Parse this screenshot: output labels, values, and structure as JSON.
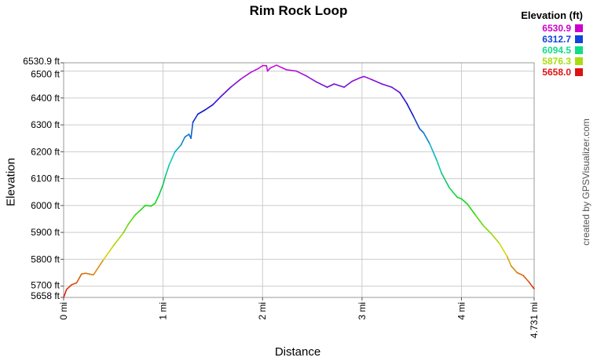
{
  "chart_data": {
    "type": "line",
    "title": "Rim Rock Loop",
    "xlabel": "Distance",
    "ylabel": "Elevation",
    "credit": "created by GPSVisualizer.com",
    "xlim": [
      0,
      4.731
    ],
    "ylim": [
      5658,
      6530.9
    ],
    "x_ticks": [
      {
        "value": 0,
        "label": "0 mi"
      },
      {
        "value": 1,
        "label": "1 mi"
      },
      {
        "value": 2,
        "label": "2 mi"
      },
      {
        "value": 3,
        "label": "3 mi"
      },
      {
        "value": 4,
        "label": "4 mi"
      },
      {
        "value": 4.731,
        "label": "4.731 mi"
      }
    ],
    "y_ticks": [
      {
        "value": 5658,
        "label": "5658 ft"
      },
      {
        "value": 5700,
        "label": "5700 ft"
      },
      {
        "value": 5800,
        "label": "5800 ft"
      },
      {
        "value": 5900,
        "label": "5900 ft"
      },
      {
        "value": 6000,
        "label": "6000 ft"
      },
      {
        "value": 6100,
        "label": "6100 ft"
      },
      {
        "value": 6200,
        "label": "6200 ft"
      },
      {
        "value": 6300,
        "label": "6300 ft"
      },
      {
        "value": 6400,
        "label": "6400 ft"
      },
      {
        "value": 6500,
        "label": "6500 ft"
      },
      {
        "value": 6530.9,
        "label": "6530.9 ft"
      }
    ],
    "grid": true,
    "legend_position": "top-right",
    "legend": {
      "title": "Elevation (ft)",
      "entries": [
        {
          "label": "6530.9",
          "color": "#cc00cc"
        },
        {
          "label": "6312.7",
          "color": "#1144dd"
        },
        {
          "label": "6094.5",
          "color": "#11dd88"
        },
        {
          "label": "5876.3",
          "color": "#aadd11"
        },
        {
          "label": "5658.0",
          "color": "#dd1111"
        }
      ]
    },
    "series": [
      {
        "x": [
          0,
          0.03,
          0.08,
          0.13,
          0.18,
          0.22,
          0.3,
          0.4,
          0.5,
          0.6,
          0.65,
          0.72,
          0.78,
          0.82,
          0.88,
          0.92,
          0.96,
          1.0,
          1.02,
          1.06,
          1.12,
          1.18,
          1.22,
          1.26,
          1.28,
          1.3,
          1.35,
          1.42,
          1.5,
          1.58,
          1.68,
          1.78,
          1.88,
          1.96,
          2.0,
          2.04,
          2.05,
          2.08,
          2.14,
          2.2,
          2.24,
          2.34,
          2.44,
          2.54,
          2.65,
          2.72,
          2.82,
          2.9,
          2.98,
          3.02,
          3.1,
          3.2,
          3.3,
          3.38,
          3.45,
          3.52,
          3.58,
          3.62,
          3.68,
          3.75,
          3.8,
          3.88,
          3.96,
          4.0,
          4.06,
          4.14,
          4.22,
          4.3,
          4.38,
          4.46,
          4.5,
          4.56,
          4.62,
          4.68,
          4.72,
          4.731
        ],
        "y": [
          5658,
          5688,
          5705,
          5712,
          5745,
          5748,
          5742,
          5798,
          5850,
          5898,
          5930,
          5965,
          5985,
          6000,
          5998,
          6008,
          6040,
          6078,
          6105,
          6150,
          6200,
          6225,
          6255,
          6265,
          6250,
          6310,
          6340,
          6355,
          6375,
          6405,
          6440,
          6470,
          6495,
          6510,
          6520,
          6520,
          6500,
          6512,
          6522,
          6512,
          6505,
          6500,
          6482,
          6460,
          6440,
          6452,
          6440,
          6462,
          6475,
          6480,
          6468,
          6452,
          6440,
          6420,
          6380,
          6330,
          6285,
          6270,
          6230,
          6170,
          6120,
          6065,
          6030,
          6025,
          6005,
          5965,
          5925,
          5895,
          5860,
          5810,
          5775,
          5750,
          5740,
          5715,
          5695,
          5690
        ]
      }
    ]
  }
}
